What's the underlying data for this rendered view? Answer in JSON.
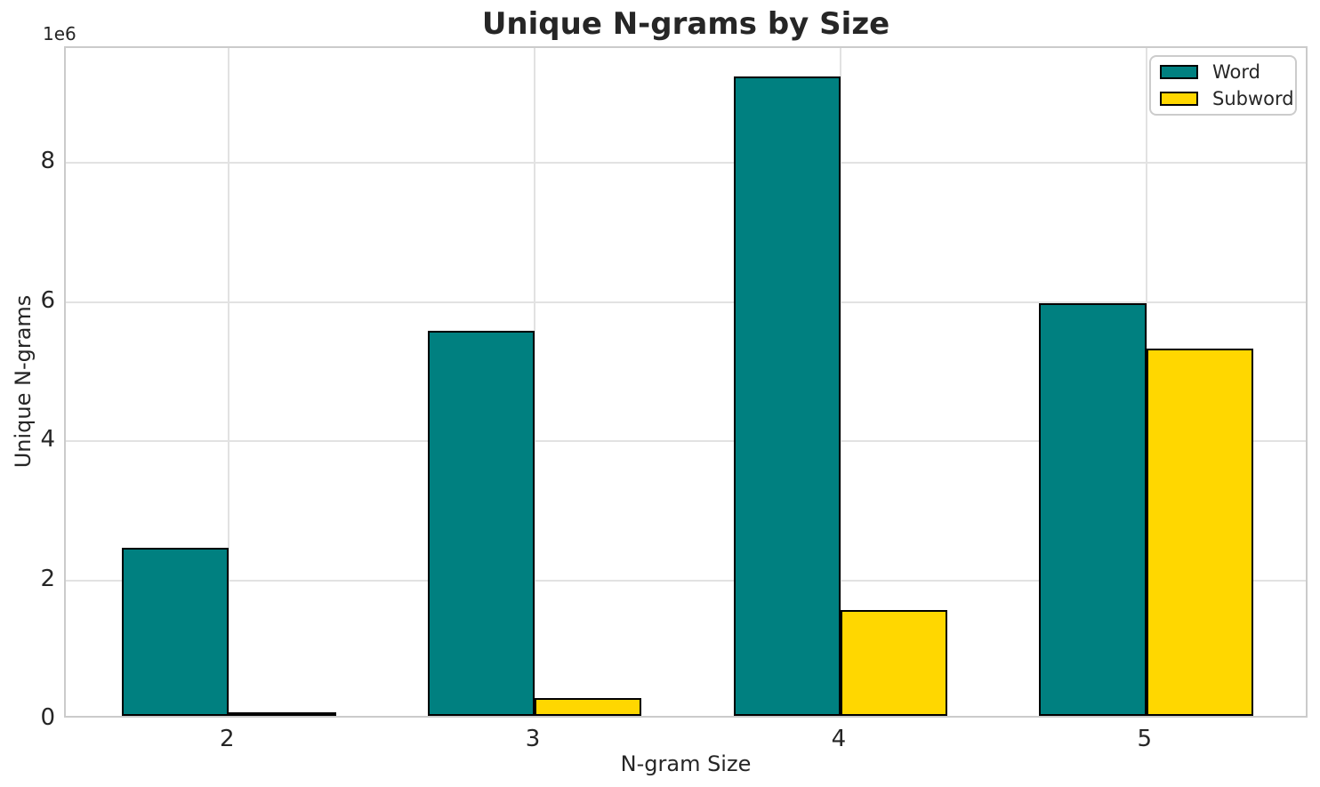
{
  "chart_data": {
    "type": "bar",
    "title": "Unique N-grams by Size",
    "xlabel": "N-gram Size",
    "ylabel": "Unique N-grams",
    "y_offset_label": "1e6",
    "categories": [
      "2",
      "3",
      "4",
      "5"
    ],
    "x_positions": [
      2,
      3,
      4,
      5
    ],
    "series": [
      {
        "name": "Word",
        "color": "#008080",
        "edge_color": "#000000",
        "values": [
          2420000,
          5540000,
          9190000,
          5930000
        ]
      },
      {
        "name": "Subword",
        "color": "#FFD700",
        "edge_color": "#000000",
        "values": [
          30000,
          255000,
          1520000,
          5280000
        ]
      }
    ],
    "bar_width": 0.35,
    "xlim": [
      1.467,
      5.533
    ],
    "ylim": [
      0,
      9650000
    ],
    "yticks": [
      0,
      2000000,
      4000000,
      6000000,
      8000000
    ],
    "ytick_labels": [
      "0",
      "2",
      "4",
      "6",
      "8"
    ],
    "grid": true,
    "grid_color": "#e2e2e2",
    "spine_color": "#cbcbcb",
    "background_color": "#ffffff",
    "legend": {
      "position": "upper right",
      "entries": [
        "Word",
        "Subword"
      ]
    }
  }
}
